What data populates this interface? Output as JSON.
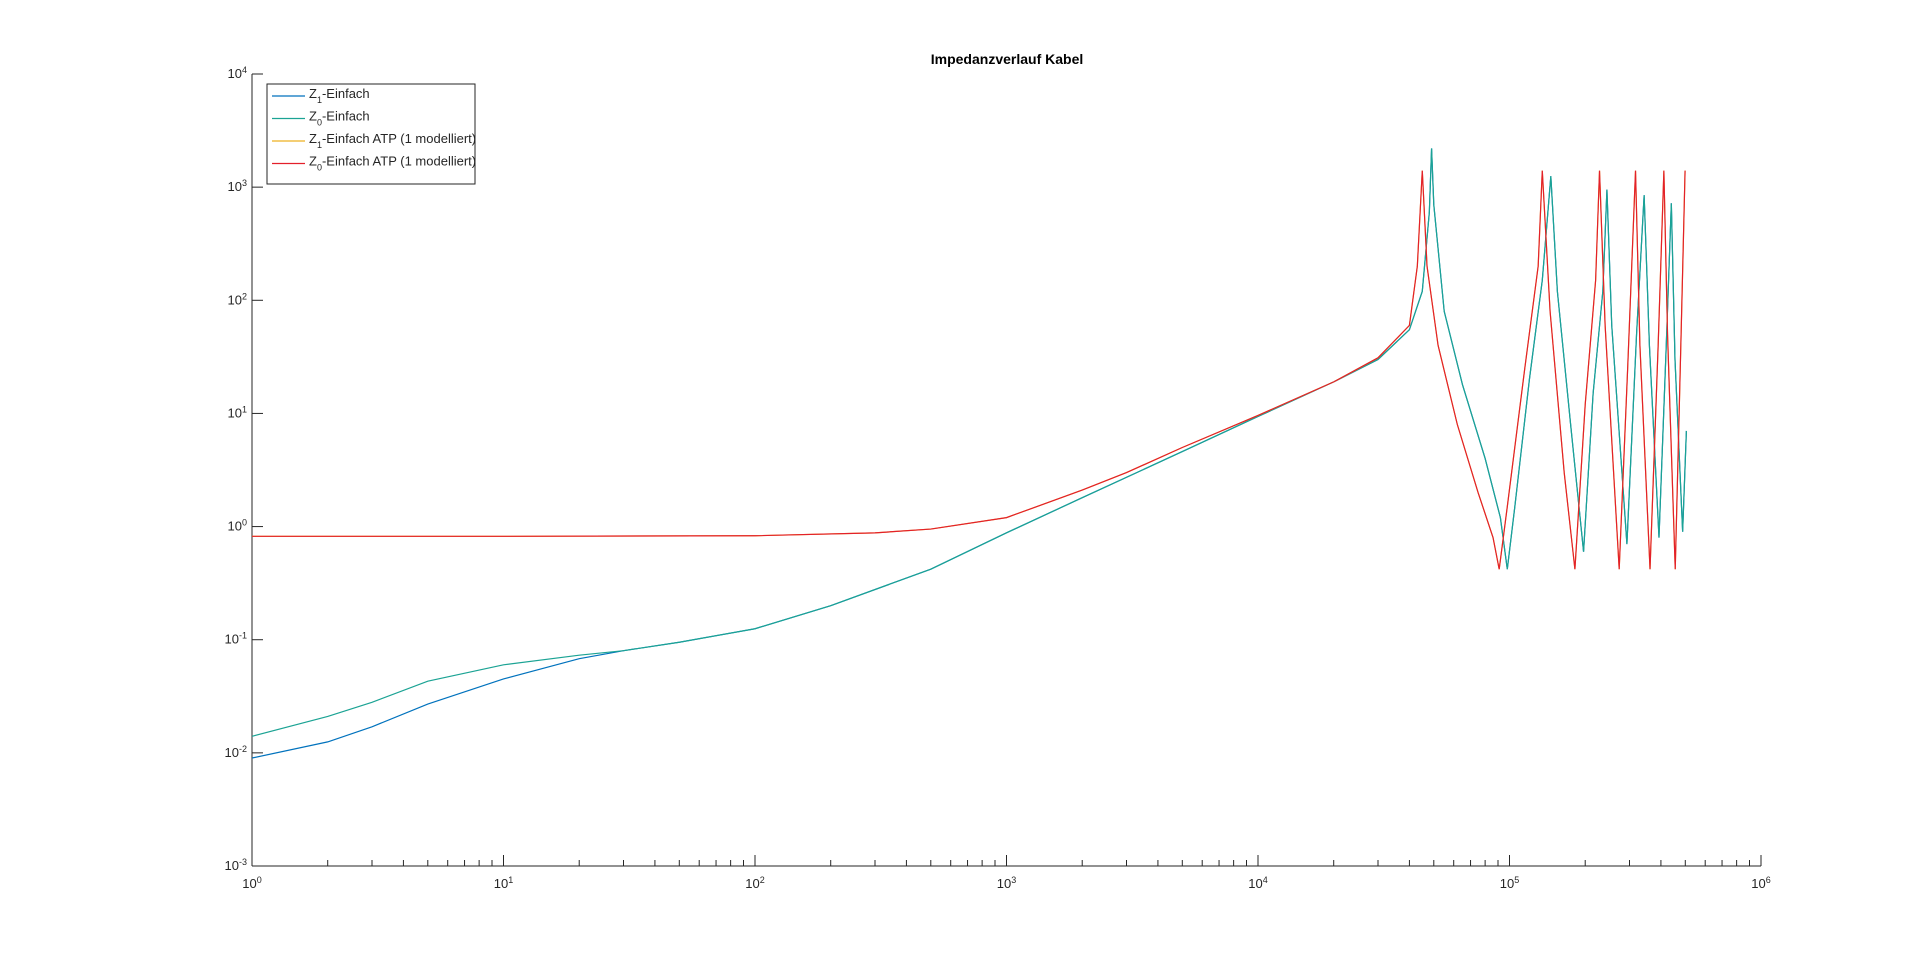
{
  "chart_data": {
    "type": "line",
    "title": "Impedanzverlauf Kabel",
    "xscale": "log",
    "yscale": "log",
    "xlim": [
      1,
      1000000
    ],
    "xticks": [
      {
        "value": 1,
        "label": "10^0"
      },
      {
        "value": 10,
        "label": "10^1"
      },
      {
        "value": 100,
        "label": "10^2"
      },
      {
        "value": 1000,
        "label": "10^3"
      },
      {
        "value": 10000,
        "label": "10^4"
      },
      {
        "value": 100000,
        "label": "10^5"
      },
      {
        "value": 1000000,
        "label": "10^6"
      }
    ],
    "ylim": [
      0.001,
      10000
    ],
    "yticks": [
      {
        "value": 0.001,
        "label": "10^-3"
      },
      {
        "value": 0.01,
        "label": "10^-2"
      },
      {
        "value": 0.1,
        "label": "10^-1"
      },
      {
        "value": 1,
        "label": "10^0"
      },
      {
        "value": 10,
        "label": "10^1"
      },
      {
        "value": 100,
        "label": "10^2"
      },
      {
        "value": 1000,
        "label": "10^3"
      },
      {
        "value": 10000,
        "label": "10^4"
      }
    ],
    "grid": false,
    "legend": "upper left",
    "series": [
      {
        "name": "Z_1-Einfach",
        "color": "#0072bd",
        "x": [
          1,
          2,
          3,
          5,
          10,
          20,
          30,
          50,
          100,
          200,
          500,
          1000,
          2000,
          5000,
          10000,
          20000,
          30000,
          40000,
          45000,
          48000,
          49000,
          50000,
          55000,
          65000,
          80000,
          92000,
          98000,
          105000,
          120000,
          135000,
          146000,
          155000,
          175000,
          197000,
          215000,
          235000,
          244000,
          255000,
          293000,
          320000,
          343000,
          360000,
          393000,
          420000,
          440000,
          455000,
          488000,
          505000
        ],
        "values": [
          0.009,
          0.0125,
          0.017,
          0.027,
          0.045,
          0.068,
          0.08,
          0.095,
          0.125,
          0.2,
          0.42,
          0.88,
          1.8,
          4.6,
          9.4,
          19,
          30,
          55,
          120,
          600,
          2200,
          700,
          80,
          18,
          4,
          1.2,
          0.42,
          1.5,
          20,
          150,
          1250,
          120,
          8,
          0.6,
          15,
          120,
          950,
          60,
          0.7,
          50,
          850,
          40,
          0.8,
          40,
          720,
          30,
          0.9,
          7
        ]
      },
      {
        "name": "Z_0-Einfach",
        "color": "#1ba394",
        "x": [
          1,
          2,
          3,
          5,
          10,
          20,
          30,
          50,
          100,
          200,
          500,
          1000,
          2000,
          5000,
          10000,
          20000,
          30000,
          40000,
          45000,
          48000,
          49000,
          50000,
          55000,
          65000,
          80000,
          92000,
          98000,
          105000,
          120000,
          135000,
          146000,
          155000,
          175000,
          197000,
          215000,
          235000,
          244000,
          255000,
          293000,
          320000,
          343000,
          360000,
          393000,
          420000,
          440000,
          455000,
          488000,
          505000
        ],
        "values": [
          0.014,
          0.021,
          0.028,
          0.043,
          0.06,
          0.073,
          0.08,
          0.095,
          0.125,
          0.2,
          0.42,
          0.88,
          1.8,
          4.6,
          9.4,
          19,
          30,
          55,
          120,
          600,
          2200,
          700,
          80,
          18,
          4,
          1.2,
          0.42,
          1.5,
          20,
          150,
          1250,
          120,
          8,
          0.6,
          15,
          120,
          950,
          60,
          0.7,
          50,
          850,
          40,
          0.8,
          40,
          720,
          30,
          0.9,
          7
        ]
      },
      {
        "name": "Z_1-Einfach ATP (1 modelliert)",
        "color": "#edb120",
        "x": [
          1,
          10,
          100,
          300,
          500,
          1000,
          2000,
          3000,
          5000,
          10000,
          20000,
          30000,
          40000,
          43000,
          45000,
          47000,
          52000,
          62000,
          75000,
          86000,
          91000,
          98000,
          115000,
          130000,
          135000,
          145000,
          165000,
          182000,
          200000,
          220000,
          228000,
          240000,
          273000,
          295000,
          317000,
          330000,
          362000,
          390000,
          411000,
          425000,
          456000,
          480000,
          499000
        ],
        "values": [
          0.82,
          0.82,
          0.83,
          0.88,
          0.95,
          1.2,
          2.1,
          3.0,
          5,
          9.6,
          19,
          31,
          60,
          200,
          1400,
          200,
          40,
          8,
          2,
          0.8,
          0.42,
          1.5,
          25,
          200,
          1400,
          80,
          3,
          0.42,
          12,
          150,
          1400,
          60,
          0.42,
          25,
          1400,
          40,
          0.42,
          40,
          1400,
          50,
          0.42,
          40,
          1400
        ]
      },
      {
        "name": "Z_0-Einfach ATP (1 modelliert)",
        "color": "#e3202b",
        "x": [
          1,
          10,
          100,
          300,
          500,
          1000,
          2000,
          3000,
          5000,
          10000,
          20000,
          30000,
          40000,
          43000,
          45000,
          47000,
          52000,
          62000,
          75000,
          86000,
          91000,
          98000,
          115000,
          130000,
          135000,
          145000,
          165000,
          182000,
          200000,
          220000,
          228000,
          240000,
          273000,
          295000,
          317000,
          330000,
          362000,
          390000,
          411000,
          425000,
          456000,
          480000,
          499000
        ],
        "values": [
          0.82,
          0.82,
          0.83,
          0.88,
          0.95,
          1.2,
          2.1,
          3.0,
          5,
          9.6,
          19,
          31,
          60,
          200,
          1400,
          200,
          40,
          8,
          2,
          0.8,
          0.42,
          1.5,
          25,
          200,
          1400,
          80,
          3,
          0.42,
          12,
          150,
          1400,
          60,
          0.42,
          25,
          1400,
          40,
          0.42,
          40,
          1400,
          50,
          0.42,
          40,
          1400
        ]
      }
    ]
  }
}
